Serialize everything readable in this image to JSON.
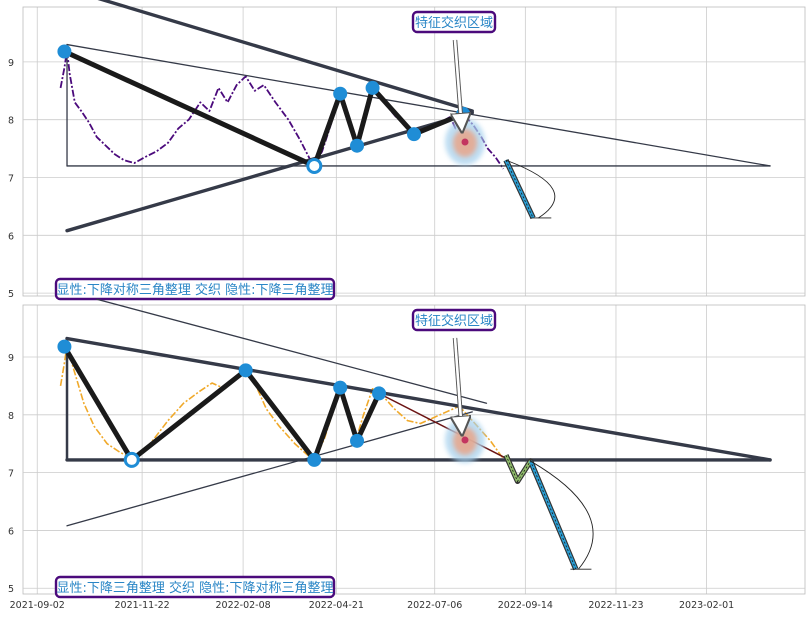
{
  "chart_data": [
    {
      "type": "line",
      "panel": "top",
      "y_ticks": [
        "5",
        "6",
        "7",
        "8",
        "9"
      ],
      "ylim": [
        4.95,
        9.95
      ],
      "grid": true,
      "series_color": "#4b0a7c",
      "pattern_label": "显性:下降对称三角整理 交织 隐性:下降三角整理",
      "callout": "特征交织区域",
      "price": [
        [
          "2021-09-20",
          8.55
        ],
        [
          "2021-09-23",
          8.9
        ],
        [
          "2021-09-25",
          9.2
        ],
        [
          "2021-09-27",
          8.8
        ],
        [
          "2021-10-01",
          8.3
        ],
        [
          "2021-10-06",
          8.15
        ],
        [
          "2021-10-12",
          7.95
        ],
        [
          "2021-10-18",
          7.7
        ],
        [
          "2021-10-25",
          7.55
        ],
        [
          "2021-11-01",
          7.4
        ],
        [
          "2021-11-08",
          7.3
        ],
        [
          "2021-11-16",
          7.25
        ],
        [
          "2021-11-24",
          7.35
        ],
        [
          "2021-12-03",
          7.45
        ],
        [
          "2021-12-12",
          7.6
        ],
        [
          "2021-12-20",
          7.85
        ],
        [
          "2021-12-28",
          8.0
        ],
        [
          "2022-01-06",
          8.3
        ],
        [
          "2022-01-13",
          8.15
        ],
        [
          "2022-01-20",
          8.55
        ],
        [
          "2022-01-27",
          8.3
        ],
        [
          "2022-02-03",
          8.6
        ],
        [
          "2022-02-10",
          8.75
        ],
        [
          "2022-02-17",
          8.5
        ],
        [
          "2022-02-24",
          8.6
        ],
        [
          "2022-03-05",
          8.3
        ],
        [
          "2022-03-15",
          8.0
        ],
        [
          "2022-03-24",
          7.65
        ],
        [
          "2022-04-01",
          7.3
        ],
        [
          "2022-04-04",
          7.2
        ],
        [
          "2022-04-10",
          7.45
        ],
        [
          "2022-04-18",
          8.0
        ],
        [
          "2022-04-24",
          8.45
        ],
        [
          "2022-04-30",
          8.1
        ],
        [
          "2022-05-07",
          7.55
        ],
        [
          "2022-05-13",
          8.1
        ],
        [
          "2022-05-19",
          8.55
        ],
        [
          "2022-05-26",
          8.35
        ],
        [
          "2022-06-06",
          8.05
        ],
        [
          "2022-06-14",
          7.9
        ],
        [
          "2022-06-20",
          7.75
        ],
        [
          "2022-06-30",
          7.85
        ],
        [
          "2022-07-10",
          7.95
        ],
        [
          "2022-07-18",
          8.05
        ],
        [
          "2022-07-22",
          7.85
        ],
        [
          "2022-07-28",
          8.1
        ],
        [
          "2022-08-05",
          7.9
        ],
        [
          "2022-08-11",
          7.7
        ],
        [
          "2022-08-16",
          7.5
        ],
        [
          "2022-08-22",
          7.35
        ],
        [
          "2022-08-28",
          7.15
        ]
      ],
      "pivots": [
        [
          "2021-09-23",
          9.18
        ],
        [
          "2022-04-04",
          7.2
        ],
        [
          "2022-04-24",
          8.45
        ],
        [
          "2022-05-07",
          7.55
        ],
        [
          "2022-05-19",
          8.55
        ],
        [
          "2022-06-20",
          7.75
        ],
        [
          "2022-07-28",
          8.1
        ]
      ],
      "pivot_open": [
        false,
        true,
        false,
        false,
        false,
        false,
        false
      ],
      "projection": [
        [
          "2022-08-30",
          7.3
        ],
        [
          "2022-09-20",
          6.3
        ]
      ]
    },
    {
      "type": "line",
      "panel": "bottom",
      "y_ticks": [
        "5",
        "6",
        "7",
        "8",
        "9"
      ],
      "ylim": [
        4.9,
        9.9
      ],
      "grid": true,
      "series_color": "#f0a92a",
      "pattern_label": "显性:下降三角整理 交织 隐性:下降对称三角整理",
      "callout": "特征交织区域",
      "price": [
        [
          "2021-09-20",
          8.5
        ],
        [
          "2021-09-23",
          8.9
        ],
        [
          "2021-09-25",
          9.2
        ],
        [
          "2021-09-30",
          8.8
        ],
        [
          "2021-10-08",
          8.2
        ],
        [
          "2021-10-16",
          7.8
        ],
        [
          "2021-10-26",
          7.5
        ],
        [
          "2021-11-05",
          7.35
        ],
        [
          "2021-11-14",
          7.25
        ],
        [
          "2021-11-20",
          7.3
        ],
        [
          "2021-11-30",
          7.55
        ],
        [
          "2021-12-12",
          7.9
        ],
        [
          "2021-12-24",
          8.2
        ],
        [
          "2022-01-05",
          8.4
        ],
        [
          "2022-01-15",
          8.55
        ],
        [
          "2022-01-25",
          8.45
        ],
        [
          "2022-02-03",
          8.65
        ],
        [
          "2022-02-10",
          8.75
        ],
        [
          "2022-02-18",
          8.5
        ],
        [
          "2022-02-26",
          8.1
        ],
        [
          "2022-03-08",
          7.8
        ],
        [
          "2022-03-20",
          7.5
        ],
        [
          "2022-03-30",
          7.3
        ],
        [
          "2022-04-04",
          7.2
        ],
        [
          "2022-04-12",
          7.6
        ],
        [
          "2022-04-19",
          8.1
        ],
        [
          "2022-04-24",
          8.45
        ],
        [
          "2022-04-30",
          8.0
        ],
        [
          "2022-05-06",
          7.55
        ],
        [
          "2022-05-12",
          8.0
        ],
        [
          "2022-05-19",
          8.45
        ],
        [
          "2022-05-26",
          8.35
        ],
        [
          "2022-06-05",
          8.1
        ],
        [
          "2022-06-15",
          7.9
        ],
        [
          "2022-06-25",
          7.85
        ],
        [
          "2022-07-05",
          7.95
        ],
        [
          "2022-07-15",
          8.05
        ],
        [
          "2022-07-25",
          8.15
        ],
        [
          "2022-08-02",
          7.95
        ],
        [
          "2022-08-10",
          7.75
        ],
        [
          "2022-08-18",
          7.55
        ],
        [
          "2022-08-26",
          7.3
        ],
        [
          "2022-08-30",
          7.2
        ]
      ],
      "pivots": [
        [
          "2021-09-23",
          9.18
        ],
        [
          "2021-11-14",
          7.22
        ],
        [
          "2022-02-10",
          8.77
        ],
        [
          "2022-04-04",
          7.22
        ],
        [
          "2022-04-24",
          8.47
        ],
        [
          "2022-05-07",
          7.55
        ],
        [
          "2022-05-24",
          8.37
        ]
      ],
      "pivot_open": [
        false,
        true,
        false,
        false,
        false,
        false,
        false
      ],
      "projection": [
        [
          "2022-08-30",
          7.3
        ],
        [
          "2022-09-08",
          6.85
        ],
        [
          "2022-09-18",
          7.2
        ],
        [
          "2022-10-23",
          5.33
        ]
      ]
    }
  ],
  "x_ticks": [
    "2021-09-02",
    "2021-11-22",
    "2022-02-08",
    "2022-04-21",
    "2022-07-06",
    "2022-09-14",
    "2022-11-23",
    "2023-02-01"
  ],
  "colors": {
    "grid": "#cccccc",
    "frame": "#bbbbbb",
    "pattern_lines": "#353a48",
    "thick_path": "#1a1a1a",
    "pivot_dot": "#1f8dd6",
    "callout_border": "#4b0a7c",
    "callout_text": "#2a86c6",
    "projection": "#2a9fd6",
    "projection_alt": "#8fbc6a"
  }
}
